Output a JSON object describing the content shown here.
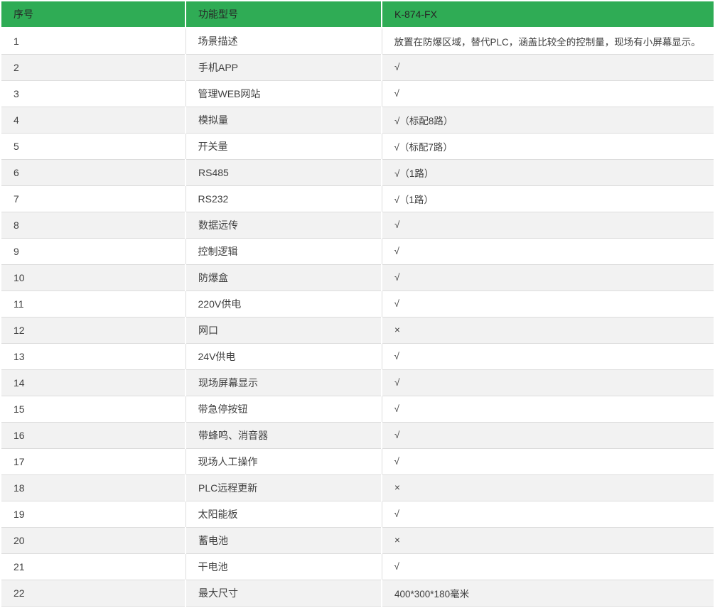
{
  "colors": {
    "header_bg": "#2fac55",
    "header_text": "#262626",
    "row_bg": "#ffffff",
    "row_alt_bg": "#f2f2f2",
    "body_text": "#404040",
    "border": "#dcdcdc"
  },
  "table": {
    "headers": [
      "序号",
      "功能型号",
      "K-874-FX"
    ],
    "check_symbol": "√",
    "cross_symbol": "×",
    "rows": [
      {
        "index": "1",
        "feature": "场景描述",
        "value": "放置在防爆区域，替代PLC，涵盖比较全的控制量，现场有小屏幕显示。"
      },
      {
        "index": "2",
        "feature": "手机APP",
        "value": "√"
      },
      {
        "index": "3",
        "feature": "管理WEB网站",
        "value": "√"
      },
      {
        "index": "4",
        "feature": "模拟量",
        "value": "√（标配8路）"
      },
      {
        "index": "5",
        "feature": "开关量",
        "value": "√（标配7路）"
      },
      {
        "index": "6",
        "feature": "RS485",
        "value": "√（1路）"
      },
      {
        "index": "7",
        "feature": "RS232",
        "value": "√（1路）"
      },
      {
        "index": "8",
        "feature": "数据远传",
        "value": "√"
      },
      {
        "index": "9",
        "feature": "控制逻辑",
        "value": "√"
      },
      {
        "index": "10",
        "feature": "防爆盒",
        "value": "√"
      },
      {
        "index": "11",
        "feature": "220V供电",
        "value": "√"
      },
      {
        "index": "12",
        "feature": "网口",
        "value": "×"
      },
      {
        "index": "13",
        "feature": "24V供电",
        "value": "√"
      },
      {
        "index": "14",
        "feature": "现场屏幕显示",
        "value": "√"
      },
      {
        "index": "15",
        "feature": "带急停按钮",
        "value": "√"
      },
      {
        "index": "16",
        "feature": "带蜂鸣、消音器",
        "value": "√"
      },
      {
        "index": "17",
        "feature": "现场人工操作",
        "value": "√"
      },
      {
        "index": "18",
        "feature": "PLC远程更新",
        "value": "×"
      },
      {
        "index": "19",
        "feature": "太阳能板",
        "value": "√"
      },
      {
        "index": "20",
        "feature": "蓄电池",
        "value": "×"
      },
      {
        "index": "21",
        "feature": "干电池",
        "value": "√"
      },
      {
        "index": "22",
        "feature": "最大尺寸",
        "value": "400*300*180毫米"
      }
    ]
  }
}
